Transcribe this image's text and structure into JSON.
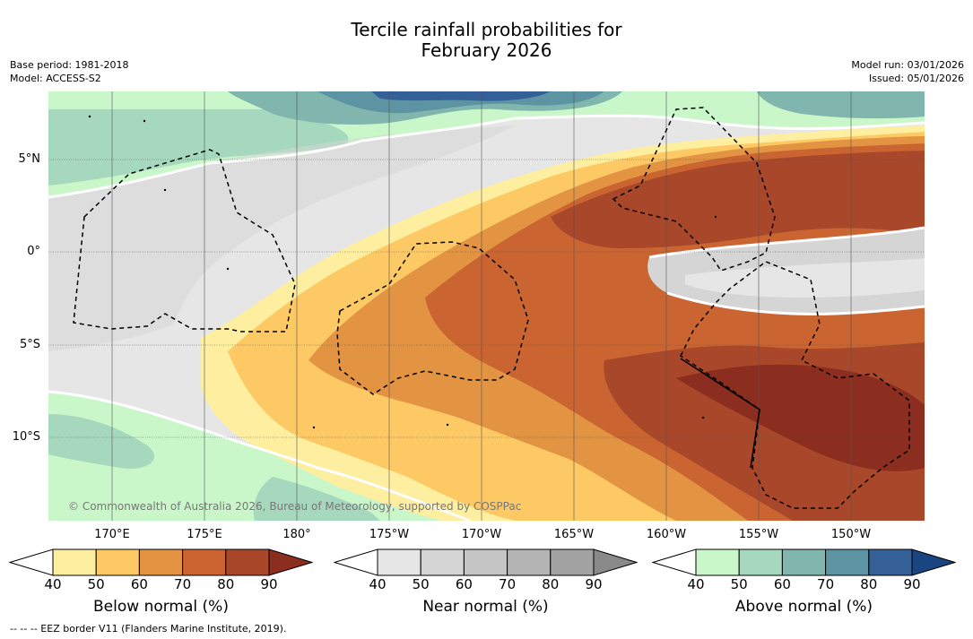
{
  "title": {
    "line1": "Tercile rainfall probabilities for",
    "line2": "February 2026"
  },
  "meta_left": {
    "base_period": "Base period: 1981-2018",
    "model": "Model: ACCESS-S2"
  },
  "meta_right": {
    "model_run": "Model run: 03/01/2026",
    "issued": "Issued: 05/01/2026"
  },
  "map": {
    "copyright": "© Commonwealth of Australia 2026, Bureau of Meteorology, supported by COSPPac",
    "lat_labels": [
      "5°N",
      "0°",
      "5°S",
      "10°S"
    ],
    "lon_labels": [
      "170°E",
      "175°E",
      "180°",
      "175°W",
      "170°W",
      "165°W",
      "160°W",
      "155°W",
      "150°W"
    ]
  },
  "colorbars": {
    "below": {
      "title": "Below normal (%)",
      "ticks": [
        "40",
        "50",
        "60",
        "70",
        "80",
        "90"
      ],
      "colors": [
        "#ffffff",
        "#feeea0",
        "#fdc964",
        "#e29443",
        "#ca6431",
        "#a9472a",
        "#8b2d1f"
      ]
    },
    "near": {
      "title": "Near normal (%)",
      "ticks": [
        "40",
        "50",
        "60",
        "70",
        "80",
        "90"
      ],
      "colors": [
        "#ffffff",
        "#e6e6e6",
        "#d5d5d5",
        "#c5c5c5",
        "#b4b4b4",
        "#a3a3a3",
        "#8a8a8a"
      ]
    },
    "above": {
      "title": "Above normal (%)",
      "ticks": [
        "40",
        "50",
        "60",
        "70",
        "80",
        "90"
      ],
      "colors": [
        "#ffffff",
        "#c9f7ca",
        "#a6d8bd",
        "#80b6ae",
        "#5d94a4",
        "#346097",
        "#1a4580"
      ]
    }
  },
  "footnote": "--  --  -- EEZ border V11 (Flanders Marine Institute, 2019)."
}
